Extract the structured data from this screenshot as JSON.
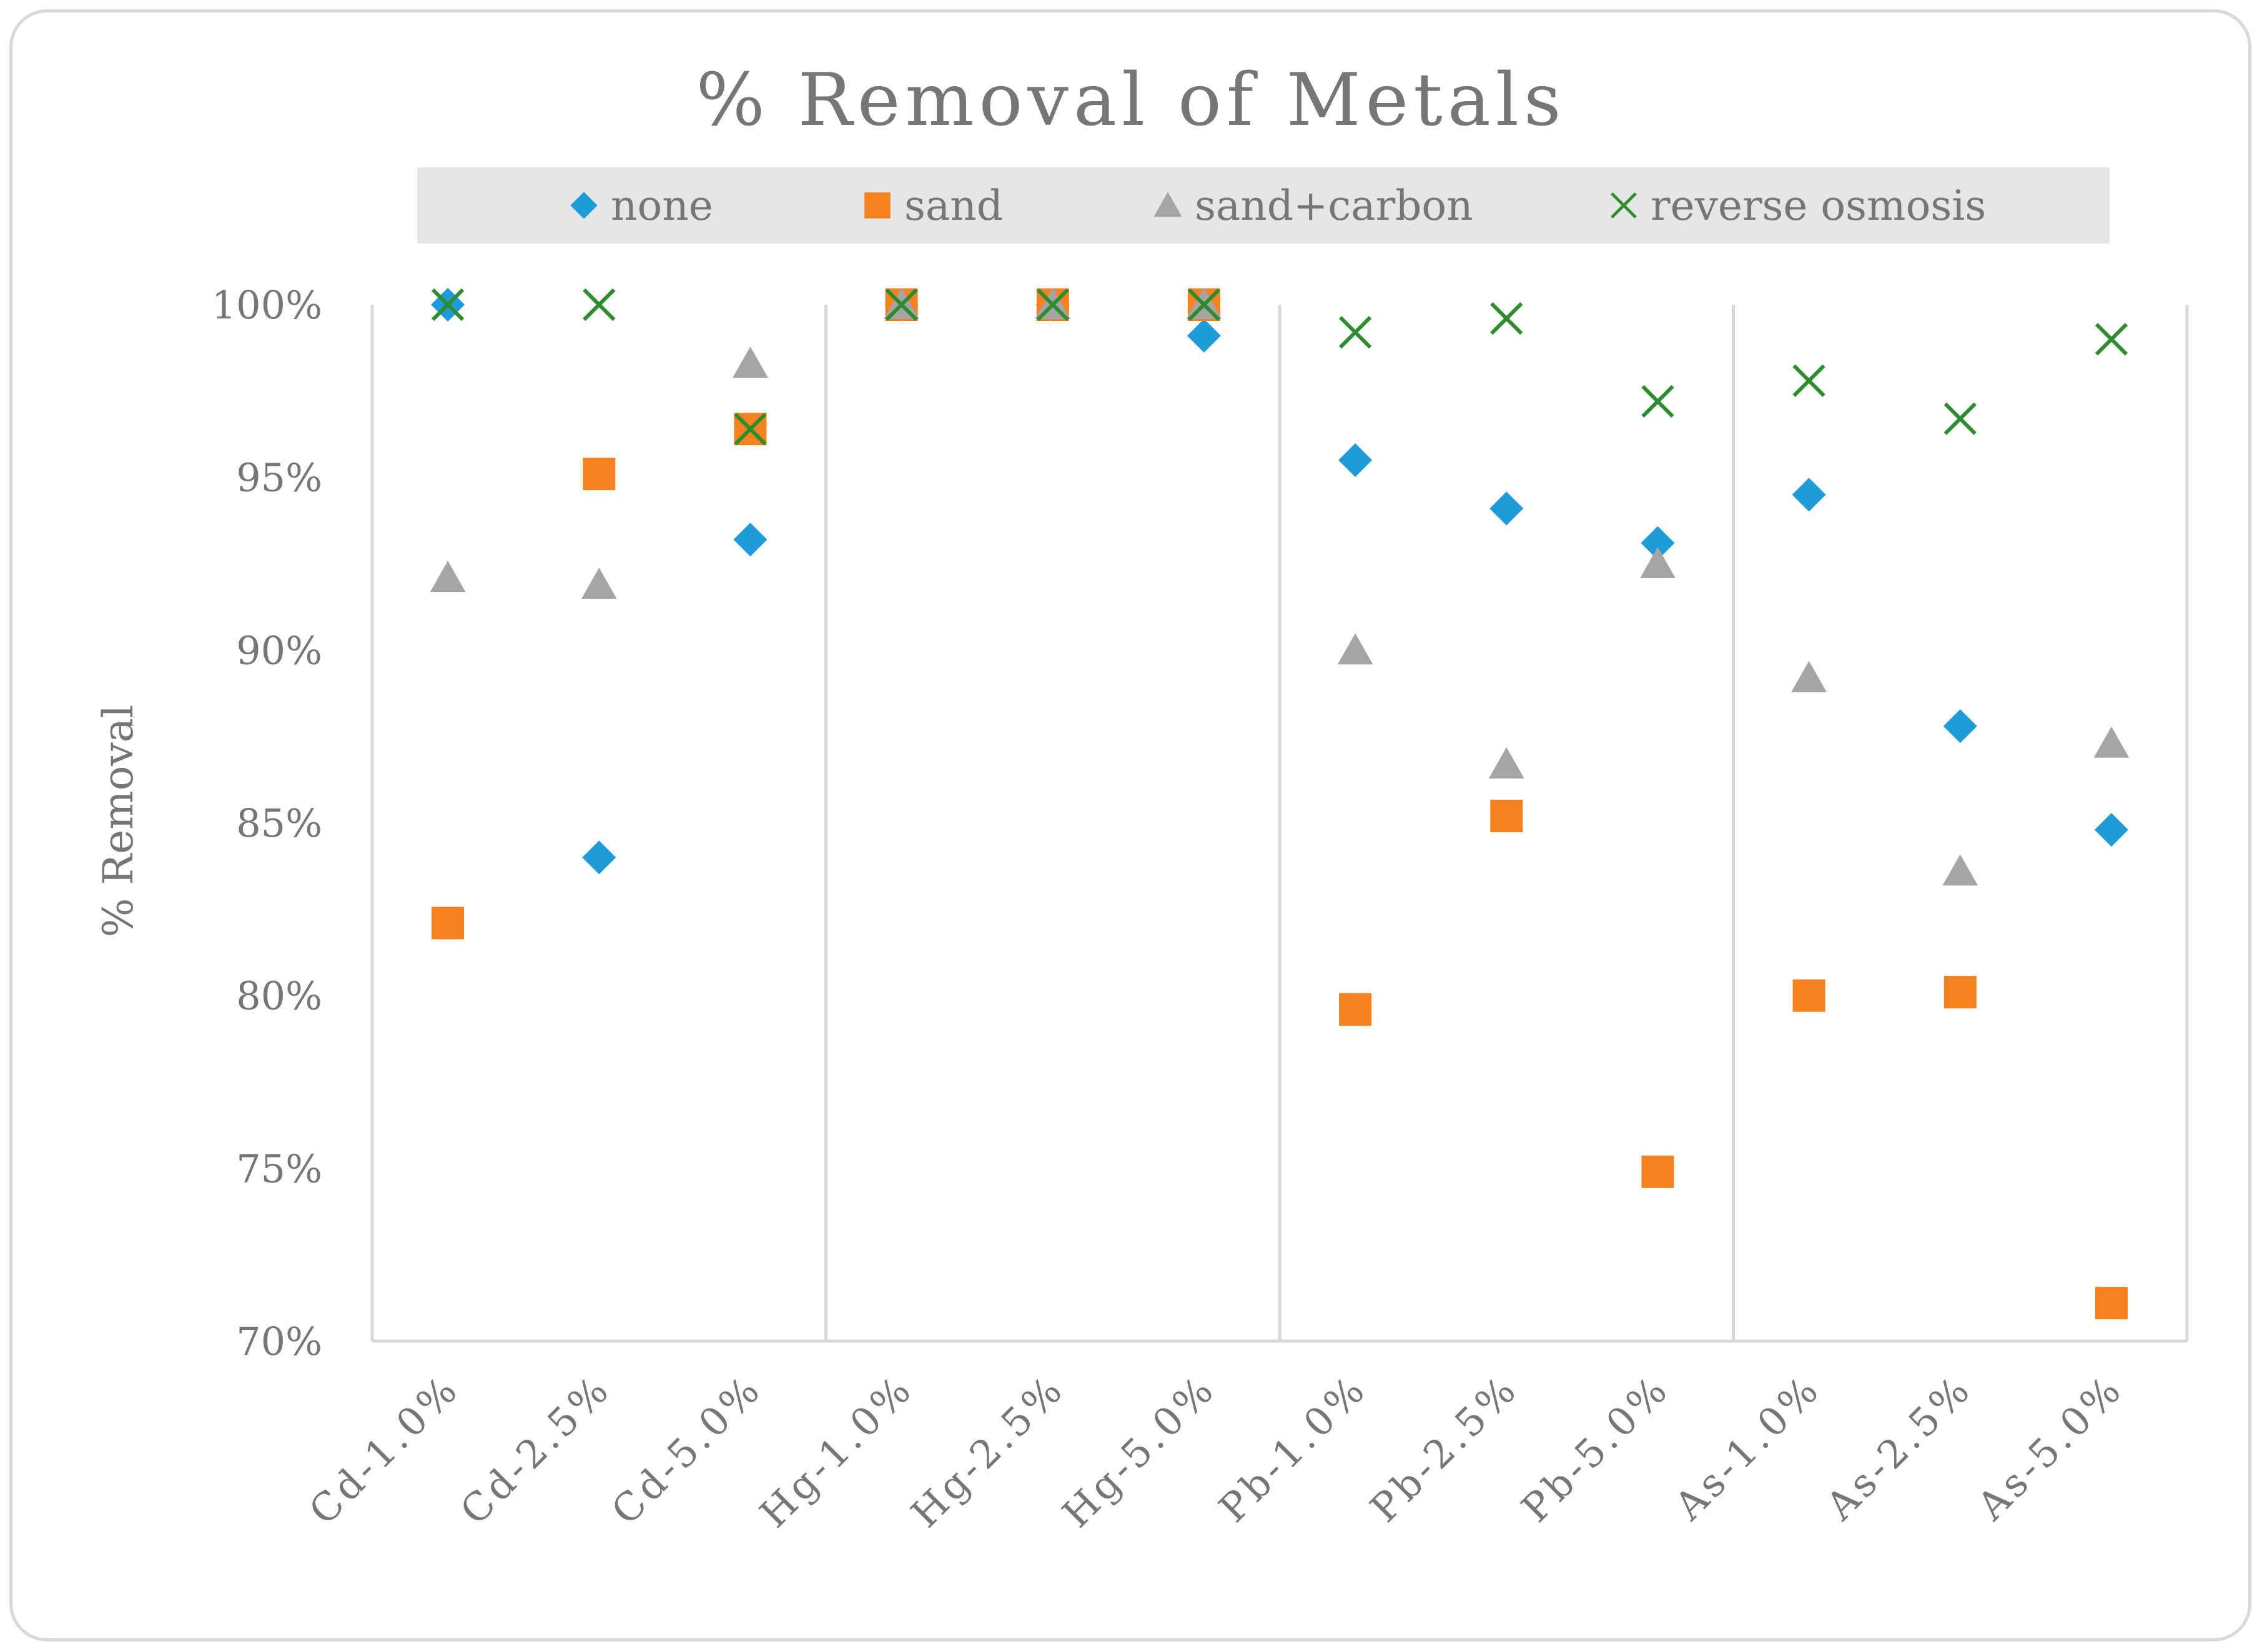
{
  "chart_data": {
    "type": "scatter",
    "title": "% Removal of Metals",
    "xlabel": "",
    "ylabel": "% Removal",
    "ylim": [
      70,
      100
    ],
    "y_ticks": [
      "70%",
      "75%",
      "80%",
      "85%",
      "90%",
      "95%",
      "100%"
    ],
    "y_tick_values": [
      70,
      75,
      80,
      85,
      90,
      95,
      100
    ],
    "legend_position": "top",
    "grid": false,
    "group_separators_after": [
      3,
      6,
      9
    ],
    "categories": [
      "Cd-1.0%",
      "Cd-2.5%",
      "Cd-5.0%",
      "Hg-1.0%",
      "Hg-2.5%",
      "Hg-5.0%",
      "Pb-1.0%",
      "Pb-2.5%",
      "Pb-5.0%",
      "As-1.0%",
      "As-2.5%",
      "As-5.0%"
    ],
    "series": [
      {
        "name": "none",
        "marker": "diamond",
        "color": "#1f9bd9",
        "values": [
          100,
          84.0,
          93.2,
          100,
          100,
          99.1,
          95.5,
          94.1,
          93.1,
          94.5,
          87.8,
          84.8
        ]
      },
      {
        "name": "sand",
        "marker": "square",
        "color": "#f58220",
        "values": [
          82.1,
          95.1,
          96.4,
          100,
          100,
          100,
          79.6,
          85.2,
          74.9,
          80.0,
          80.1,
          71.1
        ]
      },
      {
        "name": "sand+carbon",
        "marker": "triangle",
        "color": "#a5a5a5",
        "values": [
          92.1,
          91.9,
          98.3,
          100,
          100,
          100,
          90.0,
          86.7,
          92.5,
          89.2,
          83.6,
          87.3
        ]
      },
      {
        "name": "reverse osmosis",
        "marker": "x",
        "color": "#2e8b2e",
        "values": [
          100,
          100,
          96.4,
          100,
          100,
          100,
          99.2,
          99.6,
          97.2,
          97.8,
          96.7,
          99.0
        ]
      }
    ]
  }
}
